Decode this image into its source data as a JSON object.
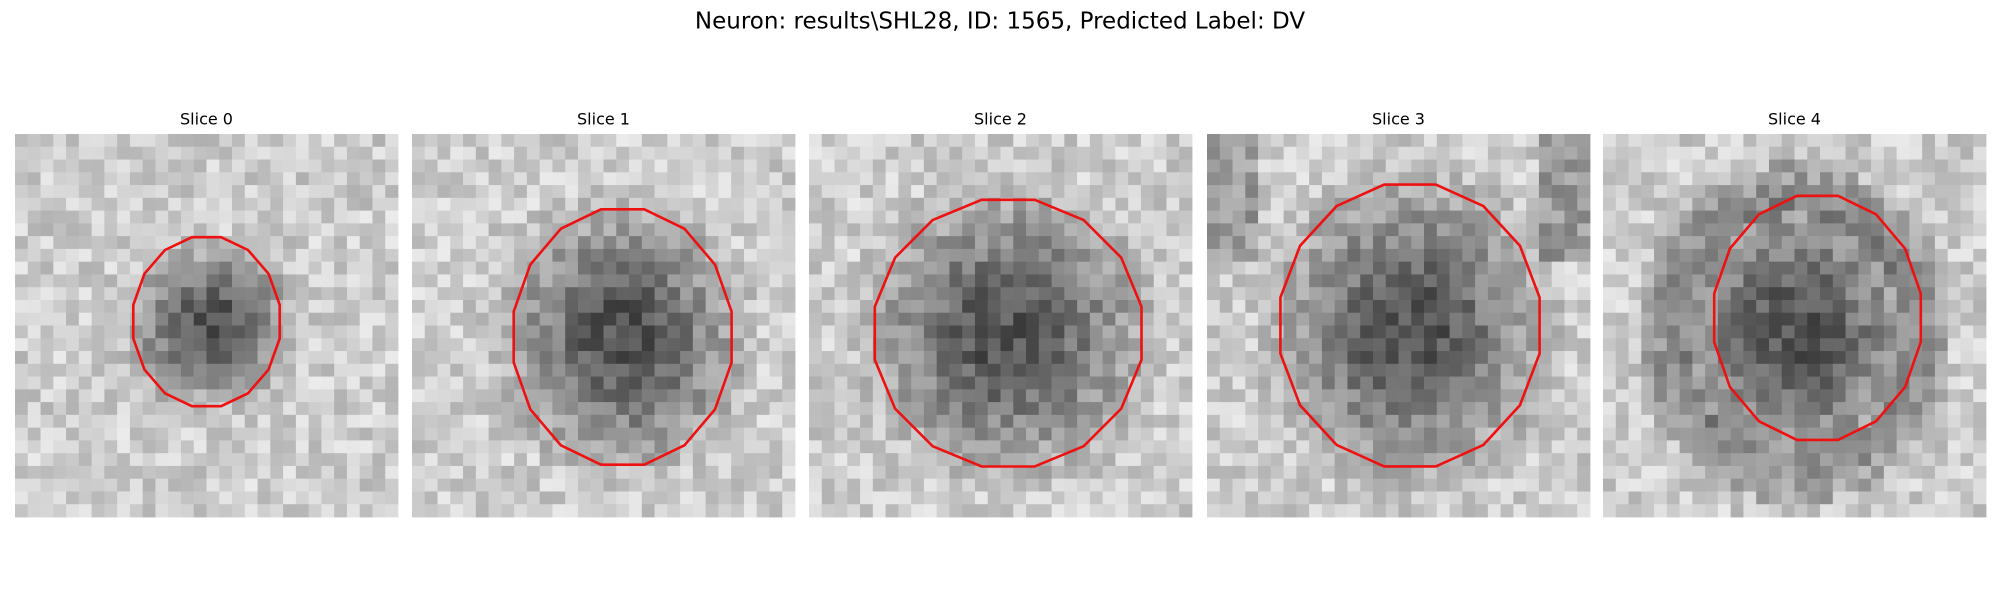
{
  "title": "Neuron: results\\SHL28, ID: 1565, Predicted Label: DV",
  "panels": [
    {
      "label": "Slice 0"
    },
    {
      "label": "Slice 1"
    },
    {
      "label": "Slice 2"
    },
    {
      "label": "Slice 3"
    },
    {
      "label": "Slice 4"
    }
  ]
}
